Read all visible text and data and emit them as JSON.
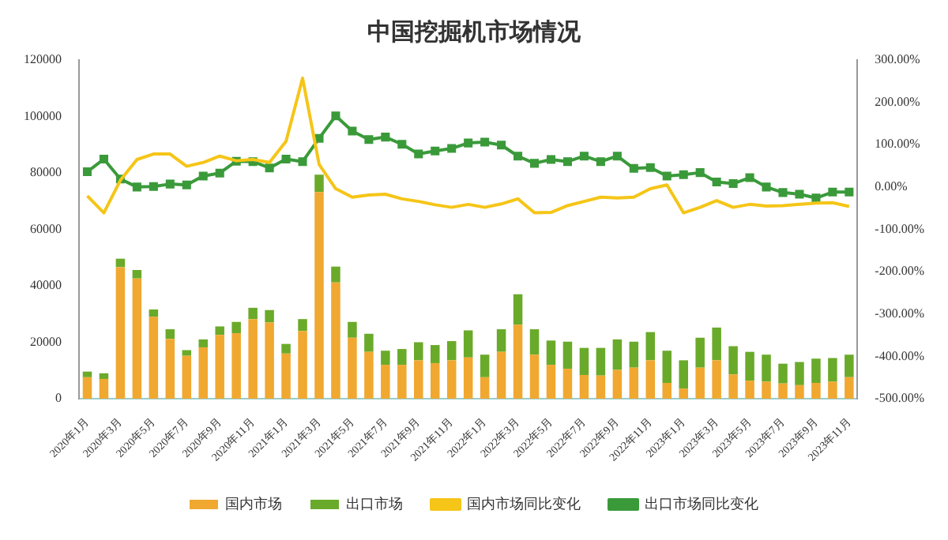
{
  "chart_data": {
    "type": "bar",
    "title": "中国挖掘机市场情况",
    "stacked": true,
    "categories": [
      "2020年1月",
      null,
      "2020年3月",
      null,
      "2020年5月",
      null,
      "2020年7月",
      null,
      "2020年9月",
      null,
      "2020年11月",
      null,
      "2021年1月",
      null,
      "2021年3月",
      null,
      "2021年5月",
      null,
      "2021年7月",
      null,
      "2021年9月",
      null,
      "2021年11月",
      null,
      "2022年1月",
      null,
      "2022年3月",
      null,
      "2022年5月",
      null,
      "2022年7月",
      null,
      "2022年9月",
      null,
      "2022年11月",
      null,
      "2023年1月",
      null,
      "2023年3月",
      null,
      "2023年5月",
      null,
      "2023年7月",
      null,
      "2023年9月",
      null,
      "2023年11月"
    ],
    "series": [
      {
        "name": "国内市场",
        "color": "#f0a830",
        "values": [
          7600,
          7000,
          46600,
          42600,
          29000,
          21200,
          15200,
          18200,
          22600,
          23200,
          28200,
          27000,
          16000,
          24000,
          73200,
          41200,
          21600,
          16600,
          12000,
          12000,
          13600,
          12600,
          13600,
          14600,
          7600,
          16600,
          26200,
          15600,
          12000,
          10600,
          8400,
          8200,
          10200,
          11000,
          13600,
          5600,
          3600,
          11000,
          13600,
          8600,
          6400,
          6000,
          5400,
          4800,
          5600,
          6000,
          7600
        ]
      },
      {
        "name": "出口市场",
        "color": "#6aaa2a",
        "values": [
          2000,
          2000,
          3000,
          3000,
          2600,
          3400,
          2000,
          2800,
          3000,
          4000,
          4000,
          4400,
          3400,
          4200,
          6200,
          5600,
          5600,
          6400,
          5000,
          5600,
          6400,
          6400,
          6800,
          9600,
          8000,
          8000,
          10800,
          9000,
          8600,
          9600,
          9600,
          9800,
          10800,
          9200,
          10000,
          11400,
          10000,
          10600,
          11600,
          10000,
          10200,
          9600,
          7000,
          8200,
          8600,
          8400,
          8000
        ]
      },
      {
        "name": "国内市场同比变化",
        "type": "line",
        "axis": "y2",
        "color": "#f5c518",
        "marker": "none",
        "values": [
          -21,
          -61,
          16,
          65,
          78,
          78,
          49,
          58,
          73,
          62,
          65,
          58,
          108,
          257,
          53,
          -4,
          -24,
          -19,
          -17,
          -28,
          -34,
          -42,
          -48,
          -41,
          -48,
          -40,
          -28,
          -61,
          -60,
          -44,
          -34,
          -24,
          -26,
          -24,
          -4,
          5,
          -61,
          -48,
          -32,
          -48,
          -41,
          -45,
          -44,
          -41,
          -38,
          -37,
          -46
        ]
      },
      {
        "name": "出口市场同比变化",
        "type": "line",
        "axis": "y2",
        "color": "#3a9a3a",
        "marker": "square",
        "values": [
          36,
          66,
          19,
          0,
          1,
          7,
          5,
          26,
          33,
          61,
          60,
          45,
          66,
          60,
          115,
          168,
          132,
          112,
          118,
          101,
          78,
          85,
          91,
          104,
          106,
          99,
          73,
          56,
          65,
          60,
          73,
          60,
          73,
          44,
          46,
          26,
          29,
          34,
          12,
          8,
          22,
          0,
          -13,
          -17,
          -26,
          -12,
          -12
        ]
      }
    ],
    "ylim": [
      0,
      120000
    ],
    "yticks": [
      0,
      20000,
      40000,
      60000,
      80000,
      100000,
      120000
    ],
    "y2lim": [
      -500,
      300
    ],
    "y2ticks": [
      {
        "value": -500,
        "label": "-500.00%"
      },
      {
        "value": -400,
        "label": "-400.00%"
      },
      {
        "value": -300,
        "label": "-300.00%"
      },
      {
        "value": -200,
        "label": "-200.00%"
      },
      {
        "value": -100,
        "label": "-100.00%"
      },
      {
        "value": 0,
        "label": "0.00%"
      },
      {
        "value": 100,
        "label": "100.00%"
      },
      {
        "value": 200,
        "label": "200.00%"
      },
      {
        "value": 300,
        "label": "300.00%"
      }
    ],
    "grid": false,
    "legend": "bottom"
  }
}
